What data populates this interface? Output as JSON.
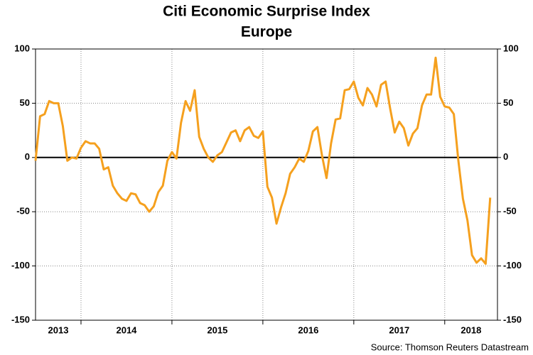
{
  "chart_data": {
    "type": "line",
    "title": "Citi Economic Surprise Index",
    "subtitle": "Europe",
    "source": "Source: Thomson Reuters Datastream",
    "categories": [
      "2013",
      "2014",
      "2015",
      "2016",
      "2017",
      "2018"
    ],
    "xlim": [
      2013.5,
      2018.58
    ],
    "xticks": [
      2014,
      2015,
      2016,
      2017,
      2018
    ],
    "ylim": [
      -150,
      100
    ],
    "yticks": [
      -150,
      -100,
      -50,
      0,
      50,
      100
    ],
    "y2lim": [
      -150,
      100
    ],
    "y2ticks": [
      -150,
      -100,
      -50,
      0,
      50,
      100
    ],
    "grid": true,
    "x": [
      2013.5,
      2013.55,
      2013.6,
      2013.65,
      2013.7,
      2013.75,
      2013.8,
      2013.85,
      2013.9,
      2013.95,
      2014,
      2014.05,
      2014.1,
      2014.15,
      2014.2,
      2014.25,
      2014.3,
      2014.35,
      2014.4,
      2014.45,
      2014.5,
      2014.55,
      2014.6,
      2014.65,
      2014.7,
      2014.75,
      2014.8,
      2014.85,
      2014.9,
      2014.95,
      2015,
      2015.05,
      2015.1,
      2015.15,
      2015.2,
      2015.25,
      2015.3,
      2015.35,
      2015.4,
      2015.45,
      2015.5,
      2015.55,
      2015.6,
      2015.65,
      2015.7,
      2015.75,
      2015.8,
      2015.85,
      2015.9,
      2015.95,
      2016,
      2016.05,
      2016.1,
      2016.15,
      2016.2,
      2016.25,
      2016.3,
      2016.35,
      2016.4,
      2016.45,
      2016.5,
      2016.55,
      2016.6,
      2016.65,
      2016.7,
      2016.75,
      2016.8,
      2016.85,
      2016.9,
      2016.95,
      2017,
      2017.05,
      2017.1,
      2017.15,
      2017.2,
      2017.25,
      2017.3,
      2017.35,
      2017.4,
      2017.45,
      2017.5,
      2017.55,
      2017.6,
      2017.65,
      2017.7,
      2017.75,
      2017.8,
      2017.85,
      2017.9,
      2017.95,
      2018,
      2018.05,
      2018.1,
      2018.15,
      2018.2,
      2018.25,
      2018.3,
      2018.35,
      2018.4,
      2018.45,
      2018.5
    ],
    "series": [
      {
        "color": "#f5a01e",
        "values": [
          -3,
          38,
          40,
          52,
          50,
          50,
          29,
          -3,
          0,
          -1,
          9,
          15,
          13,
          13,
          8,
          -11,
          -9,
          -26,
          -33,
          -38,
          -40,
          -33,
          -34,
          -42,
          -44,
          -50,
          -45,
          -32,
          -26,
          -3,
          5,
          -1,
          32,
          52,
          43,
          62,
          19,
          8,
          0,
          -4,
          2,
          5,
          14,
          23,
          25,
          15,
          25,
          28,
          20,
          18,
          24,
          -27,
          -37,
          -61,
          -46,
          -33,
          -15,
          -9,
          -1,
          -4,
          6,
          24,
          28,
          2,
          -19,
          13,
          35,
          36,
          62,
          63,
          70,
          55,
          48,
          64,
          58,
          47,
          67,
          70,
          45,
          23,
          33,
          27,
          11,
          22,
          27,
          48,
          58,
          58,
          92,
          56,
          47,
          46,
          40,
          -3,
          -38,
          -58,
          -90,
          -97,
          -93,
          -98,
          -37
        ]
      }
    ]
  }
}
